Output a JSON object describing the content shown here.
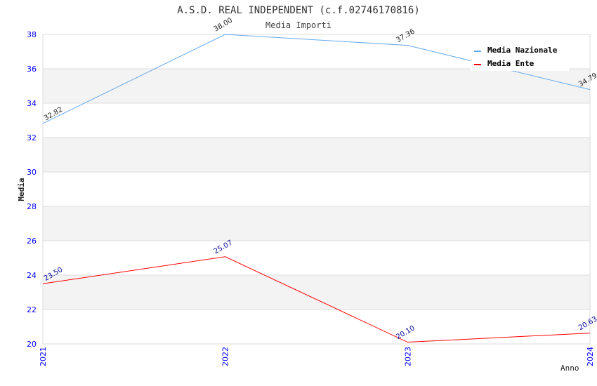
{
  "chart_data": {
    "type": "line",
    "title": "A.S.D. REAL INDEPENDENT (c.f.02746170816)",
    "subtitle": "Media Importi",
    "xlabel": "Anno",
    "ylabel": "Media",
    "categories": [
      "2021",
      "2022",
      "2023",
      "2024"
    ],
    "ylim": [
      20,
      38
    ],
    "yticks": [
      20,
      22,
      24,
      26,
      28,
      30,
      32,
      34,
      36,
      38
    ],
    "series": [
      {
        "name": "Media Nazionale",
        "color": "#66aaee",
        "label_color": "#222222",
        "values": [
          32.82,
          38.0,
          37.36,
          34.79
        ],
        "labels": [
          "32.82",
          "38.00",
          "37.36",
          "34.79"
        ]
      },
      {
        "name": "Media Ente",
        "color": "#ff0000",
        "label_color": "#000099",
        "values": [
          23.5,
          25.07,
          20.1,
          20.63
        ],
        "labels": [
          "23.50",
          "25.07",
          "20.10",
          "20.63"
        ]
      }
    ],
    "legend": "top-right",
    "grid": true
  }
}
